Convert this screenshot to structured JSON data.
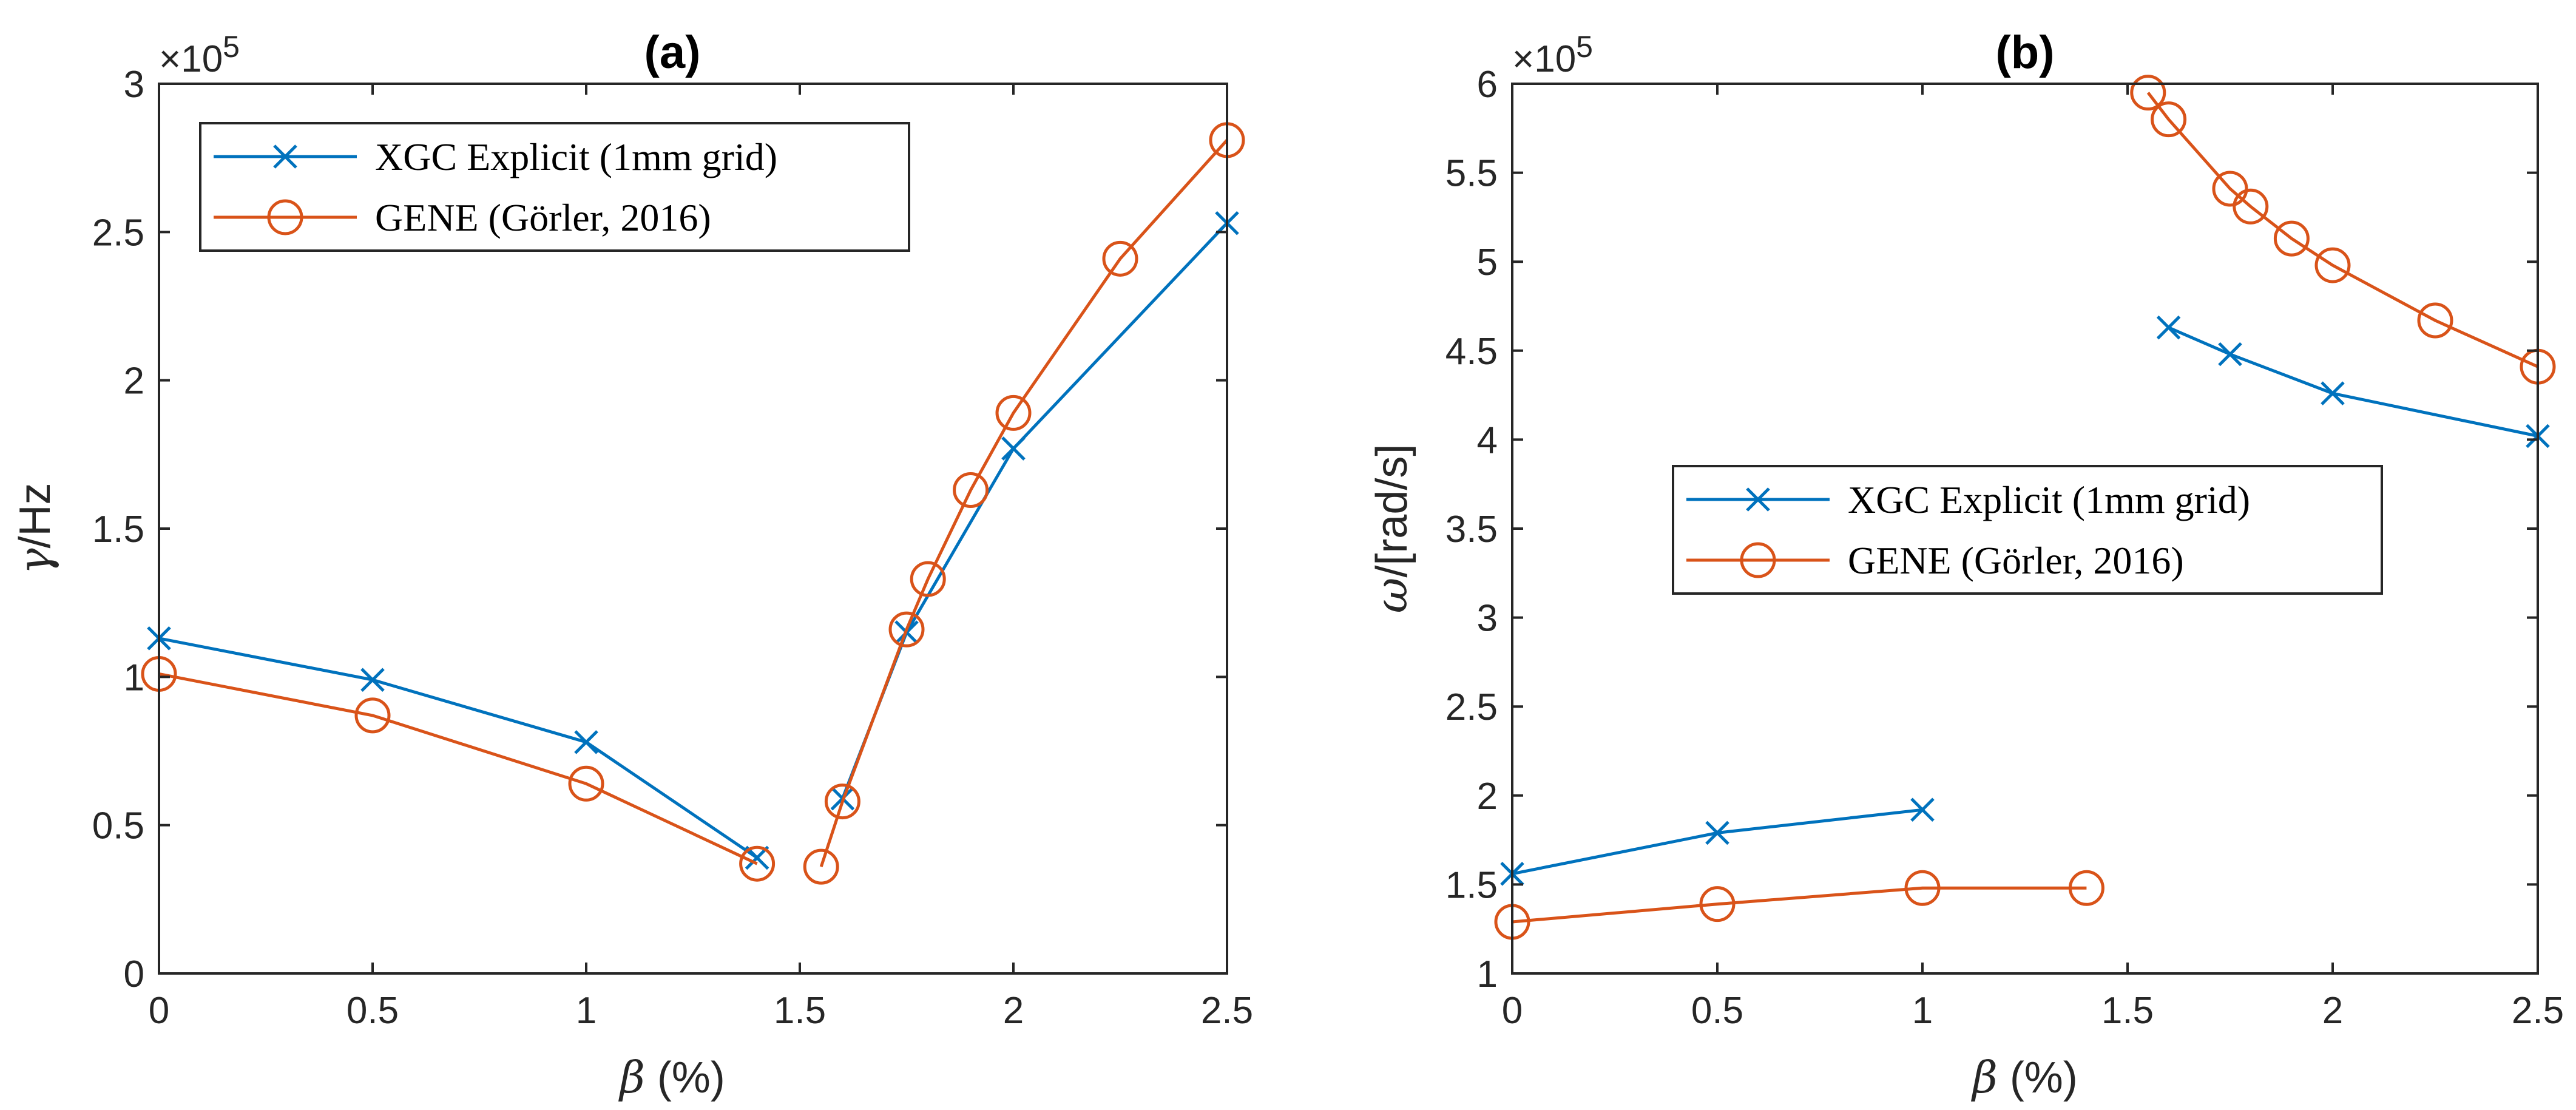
{
  "chart_data": [
    {
      "type": "line",
      "title": "(a)",
      "xlabel_symbol": "β",
      "xlabel_rest": " (%)",
      "ylabel_symbol": "γ",
      "ylabel_rest": "/Hz",
      "exponent_base": "×10",
      "exponent_power": "5",
      "xlim": [
        0,
        2.5
      ],
      "ylim": [
        0,
        3
      ],
      "xticks": [
        "0",
        "0.5",
        "1",
        "1.5",
        "2",
        "2.5"
      ],
      "yticks": [
        "0",
        "0.5",
        "1",
        "1.5",
        "2",
        "2.5",
        "3"
      ],
      "grid": false,
      "legend_position": "top-left",
      "series": [
        {
          "name": "XGC Explicit (1mm grid)",
          "color": "#0072BD",
          "marker": "x",
          "segments": [
            {
              "x": [
                0,
                0.5,
                1,
                1.4
              ],
              "y": [
                1.13,
                0.99,
                0.78,
                0.39
              ]
            },
            {
              "x": [
                1.6,
                1.75,
                2,
                2.5
              ],
              "y": [
                0.59,
                1.15,
                1.77,
                2.53
              ]
            }
          ]
        },
        {
          "name": "GENE (Görler, 2016)",
          "color": "#D95319",
          "marker": "o",
          "segments": [
            {
              "x": [
                0,
                0.5,
                1,
                1.4
              ],
              "y": [
                1.01,
                0.87,
                0.64,
                0.37
              ]
            },
            {
              "x": [
                1.55,
                1.6,
                1.75,
                1.8,
                1.9,
                2,
                2.25,
                2.5
              ],
              "y": [
                0.36,
                0.58,
                1.16,
                1.33,
                1.63,
                1.89,
                2.41,
                2.81
              ]
            }
          ]
        }
      ]
    },
    {
      "type": "line",
      "title": "(b)",
      "xlabel_symbol": "β",
      "xlabel_rest": " (%)",
      "ylabel_symbol": "ω",
      "ylabel_rest": "/[rad/s]",
      "exponent_base": "×10",
      "exponent_power": "5",
      "xlim": [
        0,
        2.5
      ],
      "ylim": [
        1,
        6
      ],
      "xticks": [
        "0",
        "0.5",
        "1",
        "1.5",
        "2",
        "2.5"
      ],
      "yticks": [
        "1",
        "1.5",
        "2",
        "2.5",
        "3",
        "3.5",
        "4",
        "4.5",
        "5",
        "5.5",
        "6"
      ],
      "grid": false,
      "legend_position": "center-right",
      "series": [
        {
          "name": "XGC Explicit (1mm grid)",
          "color": "#0072BD",
          "marker": "x",
          "segments": [
            {
              "x": [
                0,
                0.5,
                1
              ],
              "y": [
                1.56,
                1.79,
                1.92
              ]
            },
            {
              "x": [
                1.6,
                1.75,
                2,
                2.5
              ],
              "y": [
                4.63,
                4.48,
                4.26,
                4.02
              ]
            }
          ]
        },
        {
          "name": "GENE (Görler, 2016)",
          "color": "#D95319",
          "marker": "o",
          "segments": [
            {
              "x": [
                0,
                0.5,
                1,
                1.4
              ],
              "y": [
                1.29,
                1.39,
                1.48,
                1.48
              ]
            },
            {
              "x": [
                1.55,
                1.6,
                1.75,
                1.8,
                1.9,
                2,
                2.25,
                2.5
              ],
              "y": [
                5.95,
                5.8,
                5.41,
                5.31,
                5.13,
                4.98,
                4.67,
                4.41
              ]
            }
          ]
        }
      ]
    }
  ]
}
